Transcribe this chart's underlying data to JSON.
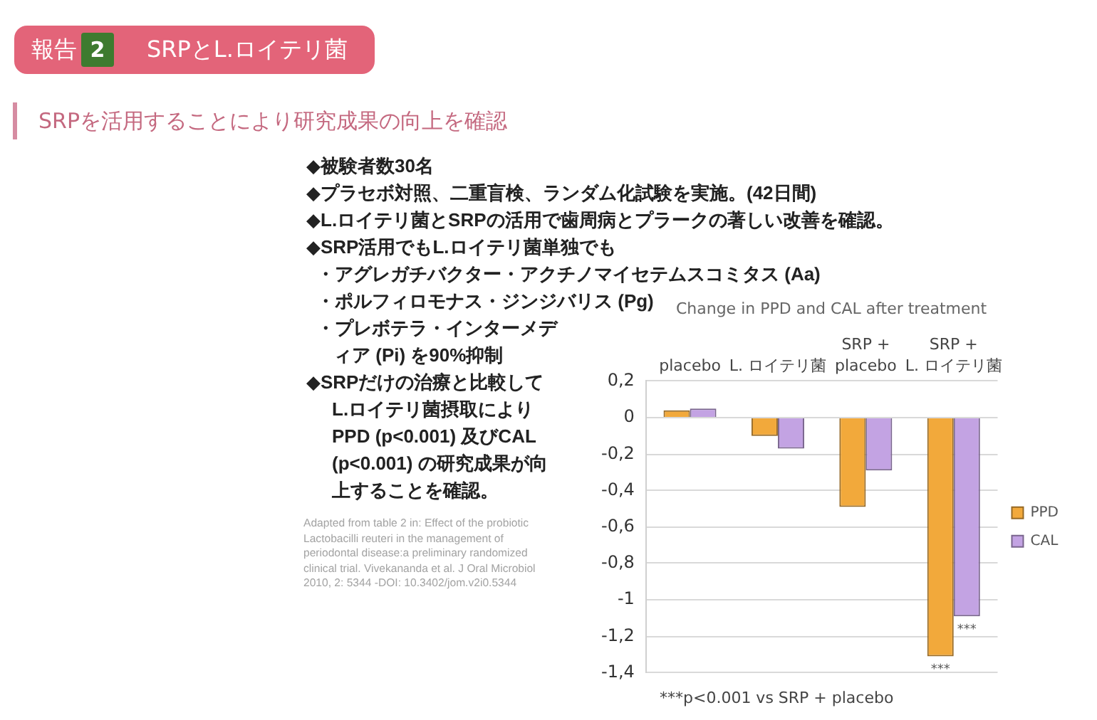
{
  "chart_data": {
    "type": "bar",
    "title": "Change in PPD and CAL after treatment",
    "categories": [
      "placebo",
      "L. ロイテリ菌",
      "SRP +\nplacebo",
      "SRP +\nL. ロイテリ菌"
    ],
    "series": [
      {
        "name": "PPD",
        "color": "#f2a93b",
        "values": [
          0.04,
          -0.1,
          -0.49,
          -1.31
        ]
      },
      {
        "name": "CAL",
        "color": "#c3a3e3",
        "values": [
          0.05,
          -0.17,
          -0.29,
          -1.09
        ]
      }
    ],
    "ylim": [
      -1.4,
      0.2
    ],
    "yticks": [
      {
        "value": 0.2,
        "label": "0,2"
      },
      0,
      {
        "value": -0.2,
        "label": "-0,2"
      },
      {
        "value": -0.4,
        "label": "-0,4"
      },
      {
        "value": -0.6,
        "label": "-0,6"
      },
      {
        "value": -0.8,
        "label": "-0,8"
      },
      -1,
      {
        "value": -1.2,
        "label": "-1,2"
      },
      {
        "value": -1.4,
        "label": "-1,4"
      }
    ],
    "grid": "y",
    "legend": "right",
    "annotations": [
      "報告",
      "2",
      "SRPとL.ロイテリ菌",
      "SRPを活用することにより研究成果の向上を確認",
      "◆被験者数30名",
      "◆プラセボ対照、二重盲検、ランダム化試験を実施。(42日間)",
      "◆L.ロイテリ菌とSRPの活用で歯周病とプラークの著しい改善を確認。",
      "◆SRP活用でもL.ロイテリ菌単独でも",
      "・アグレガチバクター・アクチノマイセテムスコミタス (Aa)",
      "・ポルフィロモナス・ジンジバリス (Pg)",
      "・プレボテラ・インターメディア (Pi) を90%抑制",
      "◆SRPだけの治療と比較してL.ロイテリ菌摂取によりPPD (p<0.001) 及びCAL (p<0.001) の研究成果が向上することを確認。",
      "Adapted from table 2 in: Effect of the probiotic Lactobacilli reuteri in the management of periodontal disease:a preliminary randomized clinical trial. Vivekananda et al. J Oral Microbiol 2010, 2: 5344 -DOI: 10.3402/jom.v2i0.5344",
      "***p<0.001 vs SRP + placebo",
      {
        "text": "***",
        "x": "SRP +\nL. ロイテリ菌",
        "y": -1.31
      },
      {
        "text": "***",
        "x": "SRP +\nL. ロイテリ菌",
        "y": -1.09
      }
    ]
  }
}
